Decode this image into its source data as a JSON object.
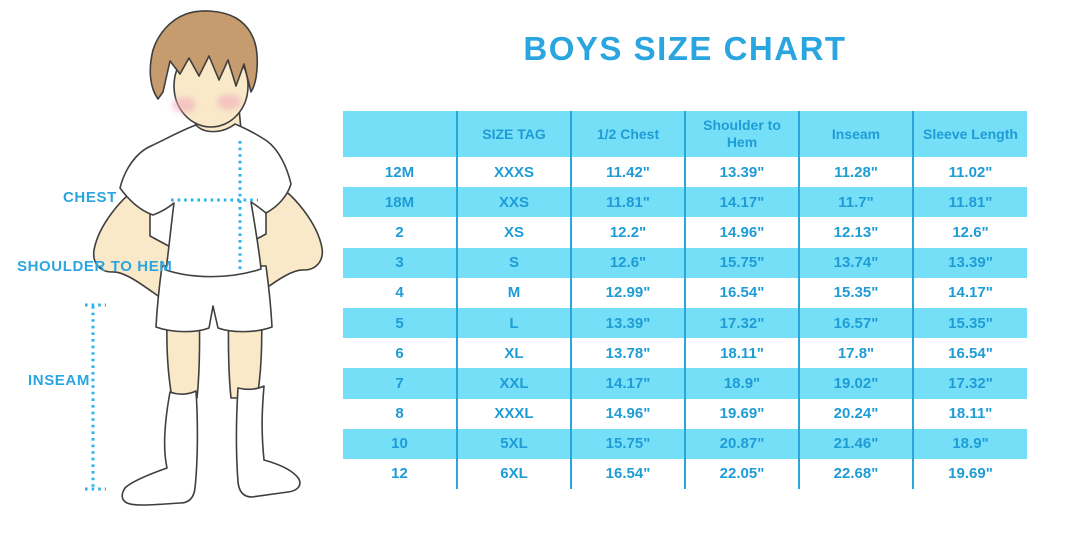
{
  "title": "BOYS SIZE CHART",
  "colors": {
    "accent_blue": "#2BA5E0",
    "table_text": "#1E9CD6",
    "row_cyan": "#76DFF8",
    "divider_blue": "#2AA6D8",
    "dotted_line": "#2BB3EA",
    "skin": "#F9E9C8",
    "hair": "#C69B6D",
    "outline": "#3F3F3F",
    "cheek": "#F1A7BB"
  },
  "figure": {
    "description": "illustrated boy in white t-shirt, shorts and knee socks with dotted measurement guides",
    "labels": {
      "chest": "CHEST",
      "shoulder_to_hem": "SHOULDER TO HEM",
      "inseam": "INSEAM"
    }
  },
  "chart_data": {
    "type": "table",
    "title": "BOYS SIZE CHART",
    "columns": [
      "",
      "SIZE TAG",
      "1/2 Chest",
      "Shoulder to Hem",
      "Inseam",
      "Sleeve Length"
    ],
    "rows": [
      [
        "12M",
        "XXXS",
        "11.42\"",
        "13.39\"",
        "11.28\"",
        "11.02\""
      ],
      [
        "18M",
        "XXS",
        "11.81\"",
        "14.17\"",
        "11.7\"",
        "11.81\""
      ],
      [
        "2",
        "XS",
        "12.2\"",
        "14.96\"",
        "12.13\"",
        "12.6\""
      ],
      [
        "3",
        "S",
        "12.6\"",
        "15.75\"",
        "13.74\"",
        "13.39\""
      ],
      [
        "4",
        "M",
        "12.99\"",
        "16.54\"",
        "15.35\"",
        "14.17\""
      ],
      [
        "5",
        "L",
        "13.39\"",
        "17.32\"",
        "16.57\"",
        "15.35\""
      ],
      [
        "6",
        "XL",
        "13.78\"",
        "18.11\"",
        "17.8\"",
        "16.54\""
      ],
      [
        "7",
        "XXL",
        "14.17\"",
        "18.9\"",
        "19.02\"",
        "17.32\""
      ],
      [
        "8",
        "XXXL",
        "14.96\"",
        "19.69\"",
        "20.24\"",
        "18.11\""
      ],
      [
        "10",
        "5XL",
        "15.75\"",
        "20.87\"",
        "21.46\"",
        "18.9\""
      ],
      [
        "12",
        "6XL",
        "16.54\"",
        "22.05\"",
        "22.68\"",
        "19.69\""
      ]
    ],
    "layout_hints": {
      "row_striping": "white / cyan alternating, first data row white",
      "column_dividers": "vertical blue lines only, no horizontal borders",
      "header_background": "cyan"
    }
  }
}
